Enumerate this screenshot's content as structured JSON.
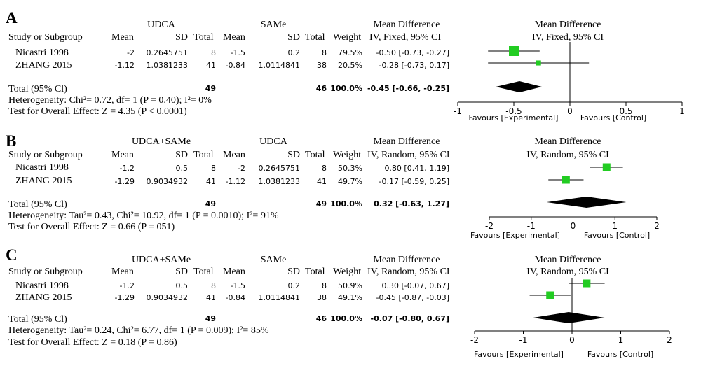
{
  "panels": [
    {
      "letter": "A",
      "group1": "UDCA",
      "group2": "SAMe",
      "md_header": "Mean Difference",
      "md_method": "IV, Fixed, 95% CI",
      "plot_header": "Mean Difference",
      "plot_method": "IV, Fixed, 95% CI",
      "col_headers": {
        "study": "Study or Subgroup",
        "mean": "Mean",
        "sd": "SD",
        "total": "Total",
        "weight": "Weight"
      },
      "rows": [
        {
          "study": "Nicastri 1998",
          "mean1": "-2",
          "sd1": "0.2645751",
          "n1": "8",
          "mean2": "-1.5",
          "sd2": "0.2",
          "n2": "8",
          "weight": "79.5%",
          "ci": "-0.50 [-0.73, -0.27]"
        },
        {
          "study": "ZHANG 2015",
          "mean1": "-1.12",
          "sd1": "1.0381233",
          "n1": "41",
          "mean2": "-0.84",
          "sd2": "1.0114841",
          "n2": "38",
          "weight": "20.5%",
          "ci": "-0.28 [-0.73, 0.17]"
        }
      ],
      "total": {
        "label": "Total (95% Cl)",
        "n1": "49",
        "n2": "46",
        "weight": "100.0%",
        "ci": "-0.45 [-0.66, -0.25]"
      },
      "heterogeneity": "Heterogeneity: Chi²= 0.72, df= 1 (P = 0.40); I²= 0%",
      "overall": "Test for Overall Effect: Z = 4.35 (P < 0.0001)",
      "favours_left": "Favours [Experimental]",
      "favours_right": "Favours [Control]"
    },
    {
      "letter": "B",
      "group1": "UDCA+SAMe",
      "group2": "UDCA",
      "md_header": "Mean Difference",
      "md_method": "IV, Random, 95% CI",
      "plot_header": "Mean Difference",
      "plot_method": "IV, Random, 95% CI",
      "col_headers": {
        "study": "Study or Subgroup",
        "mean": "Mean",
        "sd": "SD",
        "total": "Total",
        "weight": "Weight"
      },
      "rows": [
        {
          "study": "Nicastri 1998",
          "mean1": "-1.2",
          "sd1": "0.5",
          "n1": "8",
          "mean2": "-2",
          "sd2": "0.2645751",
          "n2": "8",
          "weight": "50.3%",
          "ci": "0.80 [0.41, 1.19]"
        },
        {
          "study": "ZHANG 2015",
          "mean1": "-1.29",
          "sd1": "0.9034932",
          "n1": "41",
          "mean2": "-1.12",
          "sd2": "1.0381233",
          "n2": "41",
          "weight": "49.7%",
          "ci": "-0.17 [-0.59, 0.25]"
        }
      ],
      "total": {
        "label": "Total (95% Cl)",
        "n1": "49",
        "n2": "49",
        "weight": "100.0%",
        "ci": "0.32 [-0.63, 1.27]"
      },
      "heterogeneity": "Heterogeneity: Tau²= 0.43, Chi²= 10.92, df= 1 (P = 0.0010); I²= 91%",
      "overall": "Test for Overall Effect: Z = 0.66 (P = 051)",
      "favours_left": "Favours [Experimental]",
      "favours_right": "Favours [Control]"
    },
    {
      "letter": "C",
      "group1": "UDCA+SAMe",
      "group2": "SAMe",
      "md_header": "Mean Difference",
      "md_method": "IV, Random, 95% CI",
      "plot_header": "Mean Difference",
      "plot_method": "IV, Random, 95% CI",
      "col_headers": {
        "study": "Study or Subgroup",
        "mean": "Mean",
        "sd": "SD",
        "total": "Total",
        "weight": "Weight"
      },
      "rows": [
        {
          "study": "Nicastri 1998",
          "mean1": "-1.2",
          "sd1": "0.5",
          "n1": "8",
          "mean2": "-1.5",
          "sd2": "0.2",
          "n2": "8",
          "weight": "50.9%",
          "ci": "0.30 [-0.07, 0.67]"
        },
        {
          "study": "ZHANG 2015",
          "mean1": "-1.29",
          "sd1": "0.9034932",
          "n1": "41",
          "mean2": "-0.84",
          "sd2": "1.0114841",
          "n2": "38",
          "weight": "49.1%",
          "ci": "-0.45 [-0.87, -0.03]"
        }
      ],
      "total": {
        "label": "Total (95% Cl)",
        "n1": "49",
        "n2": "46",
        "weight": "100.0%",
        "ci": "-0.07 [-0.80, 0.67]"
      },
      "heterogeneity": "Heterogeneity: Tau²= 0.24, Chi²= 6.77, df= 1 (P = 0.009); I²= 85%",
      "overall": "Test for Overall Effect: Z = 0.18 (P = 0.86)",
      "favours_left": "Favours [Experimental]",
      "favours_right": "Favours [Control]"
    }
  ],
  "colors": {
    "study_marker": "#22cc22",
    "pooled_marker": "#000000",
    "axis": "#000000"
  },
  "chart_data": [
    {
      "type": "forest",
      "title": "A",
      "xlim": [
        -1,
        1
      ],
      "ticks": [
        -1,
        -0.5,
        0,
        0.5,
        1
      ],
      "tick_labels": [
        "-1",
        "-0.5",
        "0",
        "0.5",
        "1"
      ],
      "studies": [
        {
          "name": "Nicastri 1998",
          "estimate": -0.5,
          "lower": -0.73,
          "upper": -0.27,
          "weight": 79.5
        },
        {
          "name": "ZHANG 2015",
          "estimate": -0.28,
          "lower": -0.73,
          "upper": 0.17,
          "weight": 20.5
        }
      ],
      "pooled": {
        "estimate": -0.45,
        "lower": -0.66,
        "upper": -0.25
      }
    },
    {
      "type": "forest",
      "title": "B",
      "xlim": [
        -2,
        2
      ],
      "ticks": [
        -2,
        -1,
        0,
        1,
        2
      ],
      "tick_labels": [
        "-2",
        "-1",
        "0",
        "1",
        "2"
      ],
      "studies": [
        {
          "name": "Nicastri 1998",
          "estimate": 0.8,
          "lower": 0.41,
          "upper": 1.19,
          "weight": 50.3
        },
        {
          "name": "ZHANG 2015",
          "estimate": -0.17,
          "lower": -0.59,
          "upper": 0.25,
          "weight": 49.7
        }
      ],
      "pooled": {
        "estimate": 0.32,
        "lower": -0.63,
        "upper": 1.27
      }
    },
    {
      "type": "forest",
      "title": "C",
      "xlim": [
        -2,
        2
      ],
      "ticks": [
        -2,
        -1,
        0,
        1,
        2
      ],
      "tick_labels": [
        "-2",
        "-1",
        "0",
        "1",
        "2"
      ],
      "studies": [
        {
          "name": "Nicastri 1998",
          "estimate": 0.3,
          "lower": -0.07,
          "upper": 0.67,
          "weight": 50.9
        },
        {
          "name": "ZHANG 2015",
          "estimate": -0.45,
          "lower": -0.87,
          "upper": -0.03,
          "weight": 49.1
        }
      ],
      "pooled": {
        "estimate": -0.07,
        "lower": -0.8,
        "upper": 0.67
      }
    }
  ]
}
